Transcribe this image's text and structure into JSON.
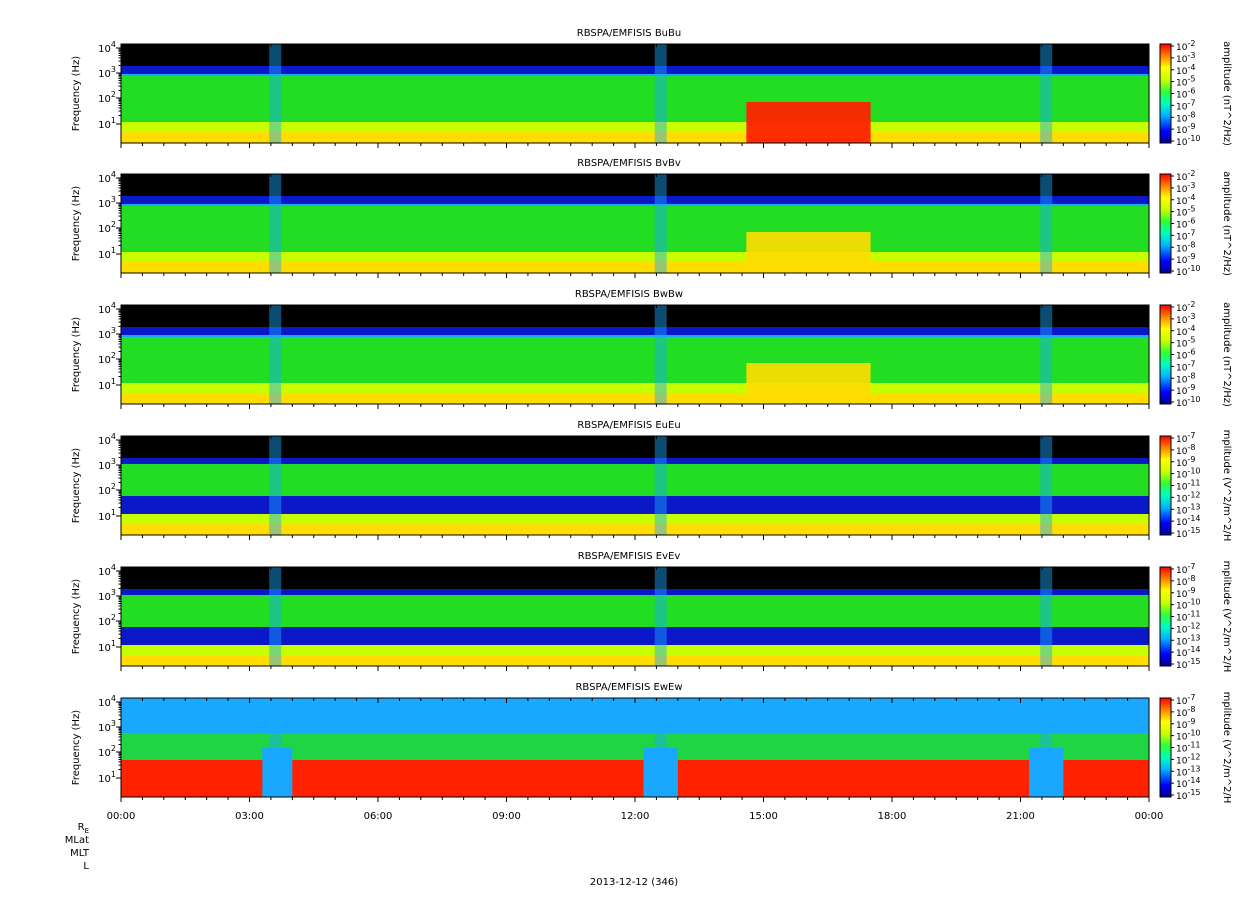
{
  "chart_data": [
    {
      "type": "heatmap",
      "title": "RBSPA/EMFISIS  BuBu",
      "ylabel": "Frequency (Hz)",
      "colorbar_label": "amplitude (nT^2/Hz)",
      "colorbar_ticks": [
        "10",
        "10",
        "10",
        "10",
        "10",
        "10",
        "10",
        "10",
        "10"
      ],
      "colorbar_exps": [
        "-2",
        "-3",
        "-4",
        "-5",
        "-6",
        "-7",
        "-8",
        "-9",
        "-10"
      ],
      "y_ticks": [
        "10",
        "10",
        "10",
        "10"
      ],
      "y_exps": [
        "4",
        "3",
        "2",
        "1"
      ],
      "y_scale": "log",
      "features": {
        "chorus": true,
        "emic": true,
        "field": "B"
      }
    },
    {
      "type": "heatmap",
      "title": "RBSPA/EMFISIS  BvBv",
      "ylabel": "Frequency (Hz)",
      "colorbar_label": "amplitude (nT^2/Hz)",
      "colorbar_ticks": [
        "10",
        "10",
        "10",
        "10",
        "10",
        "10",
        "10",
        "10",
        "10"
      ],
      "colorbar_exps": [
        "-2",
        "-3",
        "-4",
        "-5",
        "-6",
        "-7",
        "-8",
        "-9",
        "-10"
      ],
      "y_ticks": [
        "10",
        "10",
        "10",
        "10"
      ],
      "y_exps": [
        "4",
        "3",
        "2",
        "1"
      ],
      "y_scale": "log",
      "features": {
        "chorus": true,
        "emic": true,
        "field": "B"
      }
    },
    {
      "type": "heatmap",
      "title": "RBSPA/EMFISIS  BwBw",
      "ylabel": "Frequency (Hz)",
      "colorbar_label": "amplitude (nT^2/Hz)",
      "colorbar_ticks": [
        "10",
        "10",
        "10",
        "10",
        "10",
        "10",
        "10",
        "10",
        "10"
      ],
      "colorbar_exps": [
        "-2",
        "-3",
        "-4",
        "-5",
        "-6",
        "-7",
        "-8",
        "-9",
        "-10"
      ],
      "y_ticks": [
        "10",
        "10",
        "10",
        "10"
      ],
      "y_exps": [
        "4",
        "3",
        "2",
        "1"
      ],
      "y_scale": "log",
      "features": {
        "chorus": true,
        "emic": true,
        "field": "B"
      }
    },
    {
      "type": "heatmap",
      "title": "RBSPA/EMFISIS  EuEu",
      "ylabel": "Frequency (Hz)",
      "colorbar_label": "mplitude (V^2/m^2/H",
      "colorbar_ticks": [
        "10",
        "10",
        "10",
        "10",
        "10",
        "10",
        "10",
        "10",
        "10"
      ],
      "colorbar_exps": [
        "-7",
        "-8",
        "-9",
        "-10",
        "-11",
        "-12",
        "-13",
        "-14",
        "-15"
      ],
      "y_ticks": [
        "10",
        "10",
        "10",
        "10"
      ],
      "y_exps": [
        "4",
        "3",
        "2",
        "1"
      ],
      "y_scale": "log",
      "features": {
        "chorus": true,
        "emic": false,
        "field": "E"
      }
    },
    {
      "type": "heatmap",
      "title": "RBSPA/EMFISIS  EvEv",
      "ylabel": "Frequency (Hz)",
      "colorbar_label": "mplitude (V^2/m^2/H",
      "colorbar_ticks": [
        "10",
        "10",
        "10",
        "10",
        "10",
        "10",
        "10",
        "10",
        "10"
      ],
      "colorbar_exps": [
        "-7",
        "-8",
        "-9",
        "-10",
        "-11",
        "-12",
        "-13",
        "-14",
        "-15"
      ],
      "y_ticks": [
        "10",
        "10",
        "10",
        "10"
      ],
      "y_exps": [
        "4",
        "3",
        "2",
        "1"
      ],
      "y_scale": "log",
      "features": {
        "chorus": true,
        "emic": false,
        "field": "E"
      }
    },
    {
      "type": "heatmap",
      "title": "RBSPA/EMFISIS  EwEw",
      "ylabel": "Frequency (Hz)",
      "colorbar_label": "mplitude (V^2/m^2/H",
      "colorbar_ticks": [
        "10",
        "10",
        "10",
        "10",
        "10",
        "10",
        "10",
        "10",
        "10"
      ],
      "colorbar_exps": [
        "-7",
        "-8",
        "-9",
        "-10",
        "-11",
        "-12",
        "-13",
        "-14",
        "-15"
      ],
      "y_ticks": [
        "10",
        "10",
        "10",
        "10"
      ],
      "y_exps": [
        "4",
        "3",
        "2",
        "1"
      ],
      "y_scale": "log",
      "features": {
        "chorus": true,
        "emic": false,
        "field": "Ew"
      }
    }
  ],
  "x_ticks": [
    "00:00",
    "03:00",
    "06:00",
    "09:00",
    "12:00",
    "15:00",
    "18:00",
    "21:00",
    "00:00"
  ],
  "ephemeris_labels": [
    "R",
    "MLat",
    "MLT",
    "L"
  ],
  "ephemeris_subscript": "E",
  "date_label": "2013-12-12 (346)",
  "colors": {
    "background": "#000000",
    "hiss": "#22dd22",
    "low": "#ffdd00",
    "intense": "#ff2200",
    "blue": "#0000cc"
  }
}
